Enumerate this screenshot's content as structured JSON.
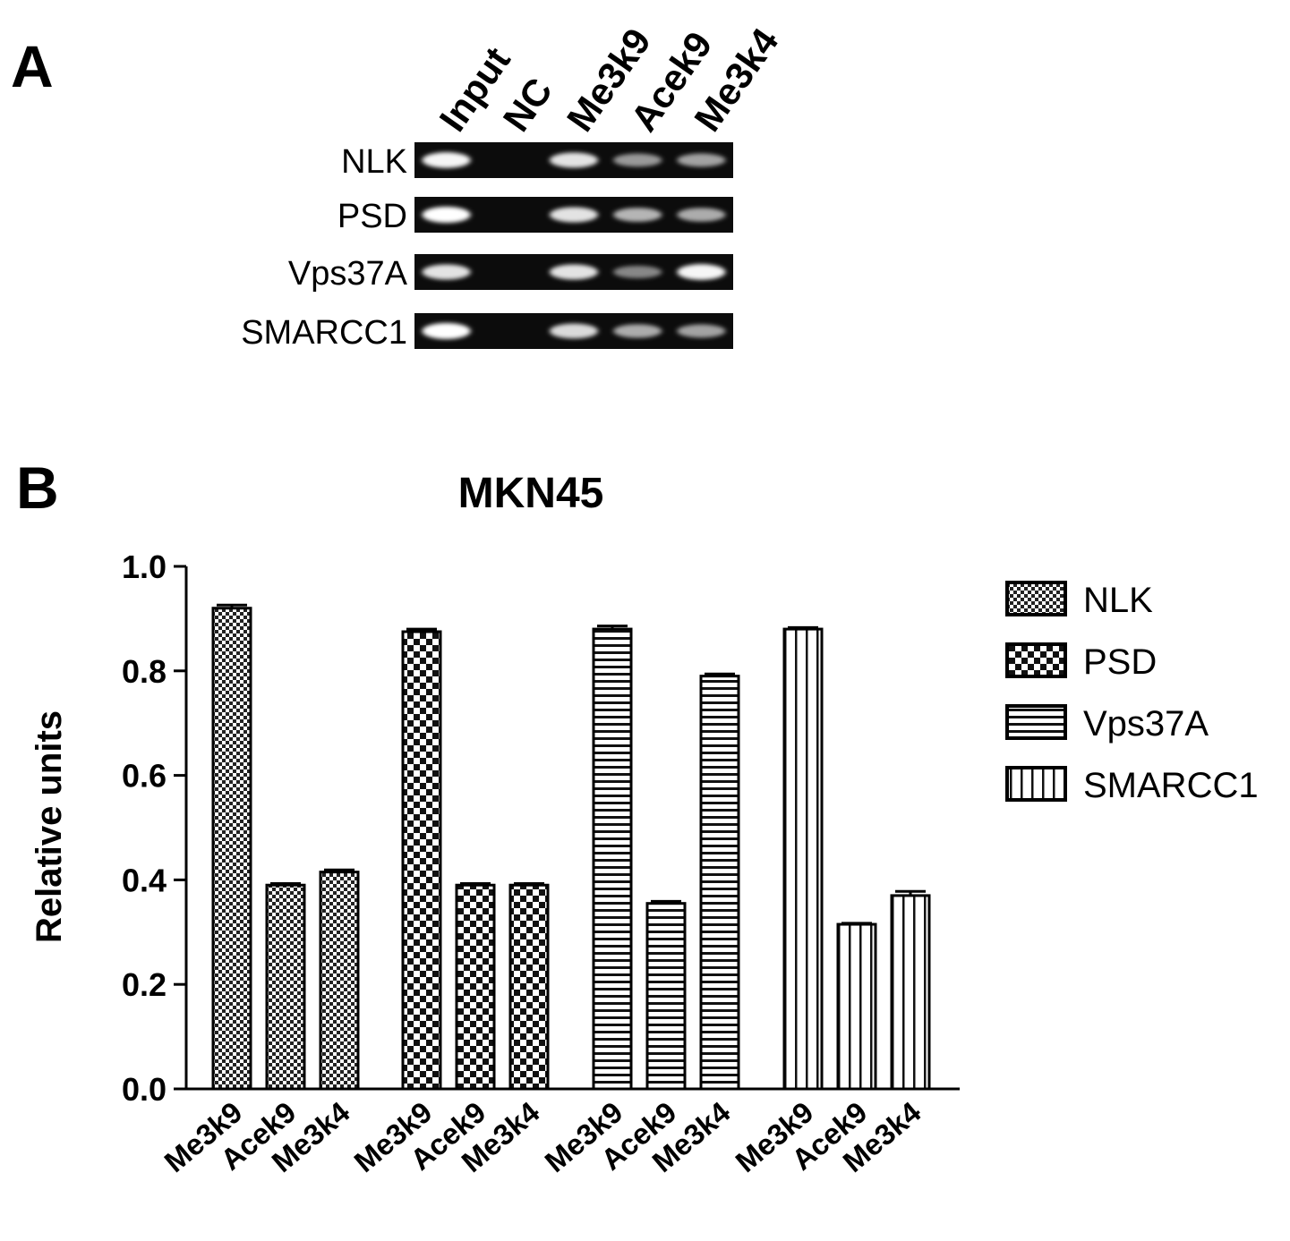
{
  "panel_a": {
    "label": "A",
    "lanes": [
      "Input",
      "NC",
      "Me3k9",
      "Acek9",
      "Me3k4"
    ],
    "rows": [
      {
        "gene": "NLK",
        "bands": [
          0.95,
          0.0,
          0.85,
          0.45,
          0.5
        ]
      },
      {
        "gene": "PSD",
        "bands": [
          1.0,
          0.0,
          0.85,
          0.6,
          0.55
        ]
      },
      {
        "gene": "Vps37A",
        "bands": [
          0.85,
          0.0,
          0.85,
          0.35,
          0.95
        ]
      },
      {
        "gene": "SMARCC1",
        "bands": [
          1.0,
          0.0,
          0.8,
          0.55,
          0.5
        ]
      }
    ]
  },
  "panel_b": {
    "label": "B"
  },
  "chart_data": {
    "type": "bar",
    "title": "MKN45",
    "xlabel": "",
    "ylabel": "Relative units",
    "ylim": [
      0,
      1.0
    ],
    "yticks": [
      "0.0",
      "0.2",
      "0.4",
      "0.6",
      "0.8",
      "1.0"
    ],
    "categories": [
      "Me3k9",
      "Acek9",
      "Me3k4"
    ],
    "legend_position": "right",
    "series": [
      {
        "name": "NLK",
        "values": [
          0.92,
          0.39,
          0.415
        ],
        "errors": [
          0.006,
          0.003,
          0.004
        ],
        "pattern": "fine-checker"
      },
      {
        "name": "PSD",
        "values": [
          0.875,
          0.39,
          0.39
        ],
        "errors": [
          0.005,
          0.003,
          0.003
        ],
        "pattern": "checker"
      },
      {
        "name": "Vps37A",
        "values": [
          0.88,
          0.355,
          0.79
        ],
        "errors": [
          0.006,
          0.004,
          0.004
        ],
        "pattern": "horizontal"
      },
      {
        "name": "SMARCC1",
        "values": [
          0.88,
          0.315,
          0.37
        ],
        "errors": [
          0.003,
          0.002,
          0.008
        ],
        "pattern": "vertical"
      }
    ]
  }
}
